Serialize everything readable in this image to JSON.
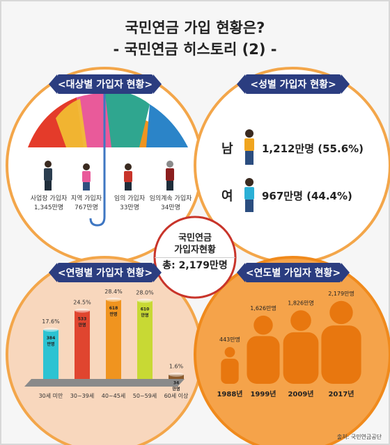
{
  "title": "국민연금 가입 현황은?",
  "subtitle": "- 국민연금 히스토리 (2) -",
  "center": {
    "line1": "국민연금",
    "line2": "가입자현황",
    "total": "총: 2,179만명"
  },
  "subscriber_type": {
    "header": "<대상별 가입자 현황>",
    "items": [
      {
        "label": "사업장 가입자",
        "value": "1,345만명"
      },
      {
        "label": "지역 가입자",
        "value": "767만명"
      },
      {
        "label": "임의 가입자",
        "value": "33만명"
      },
      {
        "label": "임의계속 가입자",
        "value": "34만명"
      }
    ]
  },
  "gender": {
    "header": "<성별 가입자 현황>",
    "rows": [
      {
        "label": "남",
        "value": "1,212만명 (55.6%)"
      },
      {
        "label": "여",
        "value": "967만명 (44.4%)"
      }
    ]
  },
  "age": {
    "header": "<연령별 가입자 현황>"
  },
  "year": {
    "header": "<연도별 가입자 현황>"
  },
  "colors": {
    "orange": "#f08a1c",
    "navy": "#2b3d80",
    "red": "#c8342a",
    "panel_orange_border": "#f3a64a"
  },
  "chart_data": [
    {
      "type": "bar",
      "categories": [
        "30세 미만",
        "30~39세",
        "40~45세",
        "50~59세",
        "60세 이상"
      ],
      "values": [
        384,
        533,
        618,
        610,
        34
      ],
      "value_labels": [
        "384\n만명",
        "533\n만명",
        "618\n만명",
        "610\n만명",
        "34\n만명"
      ],
      "percent_labels": [
        "17.6%",
        "24.5%",
        "28.4%",
        "28.0%",
        "1.6%"
      ],
      "bar_colors": [
        "#2cc3d2",
        "#e0452f",
        "#f0941f",
        "#c8d934",
        "#8b5a2b"
      ],
      "ylim": [
        0,
        650
      ]
    },
    {
      "type": "bar",
      "categories": [
        "1988년",
        "1999년",
        "2009년",
        "2017년"
      ],
      "values": [
        443,
        1626,
        1826,
        2179
      ],
      "value_labels": [
        "443만명",
        "1,626만명",
        "1,826만명",
        "2,179만명"
      ],
      "ylim": [
        0,
        2200
      ]
    }
  ]
}
